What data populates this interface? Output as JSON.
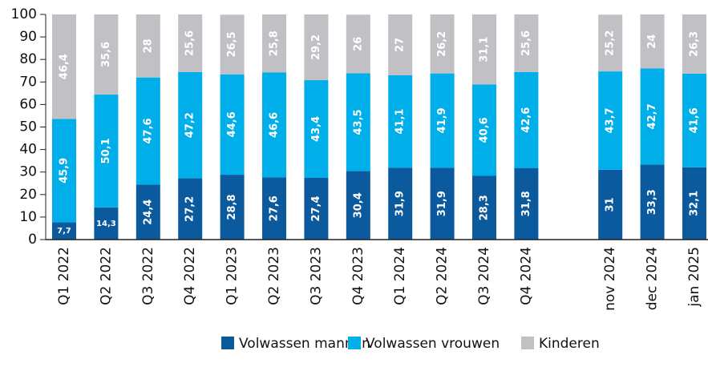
{
  "chart_data": {
    "type": "stacked_bar",
    "categories": [
      "Q1 2022",
      "Q2 2022",
      "Q3 2022",
      "Q4 2022",
      "Q1 2023",
      "Q2 2023",
      "Q3 2023",
      "Q4 2023",
      "Q1 2024",
      "Q2 2024",
      "Q3 2024",
      "Q4 2024",
      null,
      "nov 2024",
      "dec 2024",
      "jan 2025"
    ],
    "series": [
      {
        "name": "Volwassen mannen",
        "color": "#0b5a9e",
        "values": [
          7.7,
          14.3,
          24.4,
          27.2,
          28.8,
          27.6,
          27.4,
          30.4,
          31.9,
          31.9,
          28.3,
          31.8,
          null,
          31,
          33.3,
          32.1
        ],
        "value_labels": [
          "7,7",
          "14,3",
          "24,4",
          "27,2",
          "28,8",
          "27,6",
          "27,4",
          "30,4",
          "31,9",
          "31,9",
          "28,3",
          "31,8",
          null,
          "31",
          "33,3",
          "32,1"
        ]
      },
      {
        "name": "Volwassen vrouwen",
        "color": "#00aeea",
        "values": [
          45.9,
          50.1,
          47.6,
          47.2,
          44.6,
          46.6,
          43.4,
          43.5,
          41.1,
          41.9,
          40.6,
          42.6,
          null,
          43.7,
          42.7,
          41.6
        ],
        "value_labels": [
          "45,9",
          "50,1",
          "47,6",
          "47,2",
          "44,6",
          "46,6",
          "43,4",
          "43,5",
          "41,1",
          "41,9",
          "40,6",
          "42,6",
          null,
          "43,7",
          "42,7",
          "41,6"
        ]
      },
      {
        "name": "Kinderen",
        "color": "#c1c1c5",
        "values": [
          46.4,
          35.6,
          28,
          25.6,
          26.5,
          25.8,
          29.2,
          26,
          27,
          26.2,
          31.1,
          25.6,
          null,
          25.2,
          24,
          26.3
        ],
        "value_labels": [
          "46,4",
          "35,6",
          "28",
          "25,6",
          "26,5",
          "25,8",
          "29,2",
          "26",
          "27",
          "26,2",
          "31,1",
          "25,6",
          null,
          "25,2",
          "24",
          "26,3"
        ]
      }
    ],
    "ylim": [
      0,
      100
    ],
    "yticks": [
      0,
      10,
      20,
      30,
      40,
      50,
      60,
      70,
      80,
      90,
      100
    ]
  }
}
